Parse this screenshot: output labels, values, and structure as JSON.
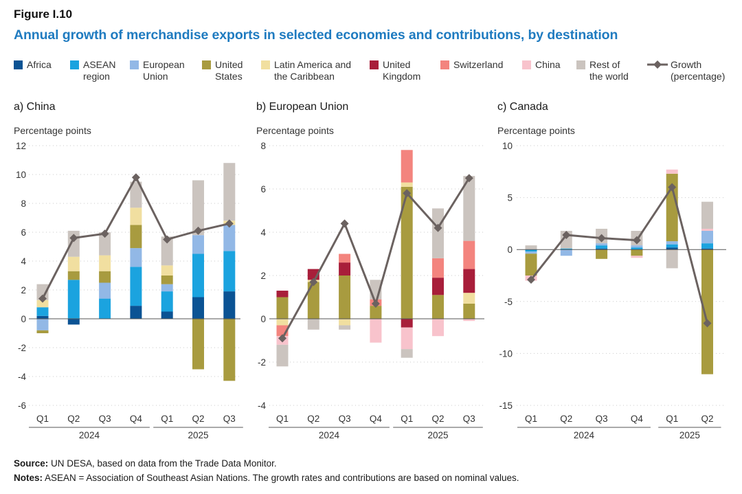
{
  "figure_label": "Figure I.10",
  "title": "Annual growth of merchandise exports in selected economies and contributions, by destination",
  "legend": [
    {
      "key": "africa",
      "label": "Africa",
      "color": "#0b5394"
    },
    {
      "key": "asean",
      "label": "ASEAN\nregion",
      "color": "#1ba3df"
    },
    {
      "key": "eu",
      "label": "European\nUnion",
      "color": "#92b8e6"
    },
    {
      "key": "us",
      "label": "United\nStates",
      "color": "#a89b3f"
    },
    {
      "key": "latam",
      "label": "Latin America and\nthe Caribbean",
      "color": "#f1dfa0"
    },
    {
      "key": "uk",
      "label": "United\nKingdom",
      "color": "#a81e3a"
    },
    {
      "key": "switzerland",
      "label": "Switzerland",
      "color": "#f3847e"
    },
    {
      "key": "china",
      "label": "China",
      "color": "#f8c3cc"
    },
    {
      "key": "row",
      "label": "Rest of\nthe world",
      "color": "#cbc4bf"
    },
    {
      "key": "growth",
      "label": "Growth\n(percentage)",
      "color": "#6b6260"
    }
  ],
  "chart_data": [
    {
      "id": "china",
      "type": "bar",
      "stacked": true,
      "title": "a) China",
      "ylabel": "Percentage points",
      "ylim": [
        -6,
        12
      ],
      "yticks": [
        -6,
        -4,
        -2,
        0,
        2,
        4,
        6,
        8,
        10,
        12
      ],
      "categories": [
        "Q1",
        "Q2",
        "Q3",
        "Q4",
        "Q1",
        "Q2",
        "Q3"
      ],
      "year_groups": [
        {
          "label": "2024",
          "count": 4
        },
        {
          "label": "2025",
          "count": 3
        }
      ],
      "series": [
        {
          "key": "africa",
          "values": [
            0.2,
            -0.4,
            0.0,
            0.9,
            0.5,
            1.5,
            1.9
          ]
        },
        {
          "key": "asean",
          "values": [
            0.6,
            2.7,
            1.4,
            2.7,
            1.4,
            3.0,
            2.8
          ]
        },
        {
          "key": "eu",
          "values": [
            -0.8,
            0.0,
            1.1,
            1.3,
            0.5,
            1.3,
            1.8
          ]
        },
        {
          "key": "us",
          "values": [
            -0.2,
            0.6,
            0.8,
            1.6,
            0.6,
            -3.5,
            -4.3
          ]
        },
        {
          "key": "latam",
          "values": [
            0.5,
            1.0,
            1.1,
            1.2,
            0.7,
            0.0,
            0.3
          ]
        },
        {
          "key": "row",
          "values": [
            1.1,
            1.8,
            1.6,
            1.8,
            2.0,
            3.8,
            4.0
          ]
        }
      ],
      "growth": [
        1.4,
        5.6,
        5.9,
        9.8,
        5.5,
        6.1,
        6.6
      ]
    },
    {
      "id": "eu",
      "type": "bar",
      "stacked": true,
      "title": "b) European Union",
      "ylabel": "Percentage points",
      "ylim": [
        -4,
        8
      ],
      "yticks": [
        -4,
        -2,
        0,
        2,
        4,
        6,
        8
      ],
      "categories": [
        "Q1",
        "Q2",
        "Q3",
        "Q4",
        "Q1",
        "Q2",
        "Q3"
      ],
      "year_groups": [
        {
          "label": "2024",
          "count": 4
        },
        {
          "label": "2025",
          "count": 3
        }
      ],
      "series": [
        {
          "key": "us",
          "values": [
            1.0,
            1.7,
            2.0,
            0.6,
            6.1,
            1.1,
            0.7
          ]
        },
        {
          "key": "latam",
          "values": [
            -0.3,
            0.1,
            -0.3,
            0.0,
            0.2,
            0.0,
            0.5
          ]
        },
        {
          "key": "uk",
          "values": [
            0.3,
            0.5,
            0.6,
            0.0,
            -0.4,
            0.8,
            1.1
          ]
        },
        {
          "key": "switzerland",
          "values": [
            -0.5,
            0.0,
            0.4,
            0.3,
            1.5,
            0.9,
            1.3
          ]
        },
        {
          "key": "china",
          "values": [
            -0.4,
            0.0,
            0.0,
            -1.1,
            -1.0,
            -0.8,
            -0.1
          ]
        },
        {
          "key": "row",
          "values": [
            -1.0,
            -0.5,
            -0.2,
            0.9,
            -0.4,
            2.3,
            3.0
          ]
        }
      ],
      "growth": [
        -0.9,
        1.7,
        4.4,
        0.7,
        5.8,
        4.2,
        6.5
      ]
    },
    {
      "id": "canada",
      "type": "bar",
      "stacked": true,
      "title": "c) Canada",
      "ylabel": "Percentage points",
      "ylim": [
        -15,
        10
      ],
      "yticks": [
        -15,
        -10,
        -5,
        0,
        5,
        10
      ],
      "categories": [
        "Q1",
        "Q2",
        "Q3",
        "Q4",
        "Q1",
        "Q2"
      ],
      "year_groups": [
        {
          "label": "2024",
          "count": 4
        },
        {
          "label": "2025",
          "count": 2
        }
      ],
      "series": [
        {
          "key": "africa",
          "values": [
            0.0,
            0.0,
            0.1,
            0.0,
            0.2,
            0.1
          ]
        },
        {
          "key": "asean",
          "values": [
            -0.2,
            0.1,
            0.3,
            0.2,
            0.3,
            0.5
          ]
        },
        {
          "key": "eu",
          "values": [
            -0.2,
            -0.6,
            0.2,
            0.2,
            0.3,
            1.2
          ]
        },
        {
          "key": "us",
          "values": [
            -2.1,
            0.0,
            -0.9,
            -0.6,
            6.5,
            -12.0
          ]
        },
        {
          "key": "china",
          "values": [
            -0.5,
            0.0,
            0.0,
            -0.2,
            0.4,
            0.2
          ]
        },
        {
          "key": "row",
          "values": [
            0.4,
            1.7,
            1.4,
            1.4,
            -1.8,
            2.6
          ]
        }
      ],
      "growth": [
        -2.9,
        1.4,
        1.1,
        0.9,
        6.0,
        -7.1
      ]
    }
  ],
  "notes": {
    "source_label": "Source:",
    "source_text": " UN DESA, based on data from the Trade Data Monitor.",
    "notes_label": "Notes:",
    "notes_text": " ASEAN = Association of Southeast Asian Nations. The growth rates and contributions are based on nominal values."
  }
}
